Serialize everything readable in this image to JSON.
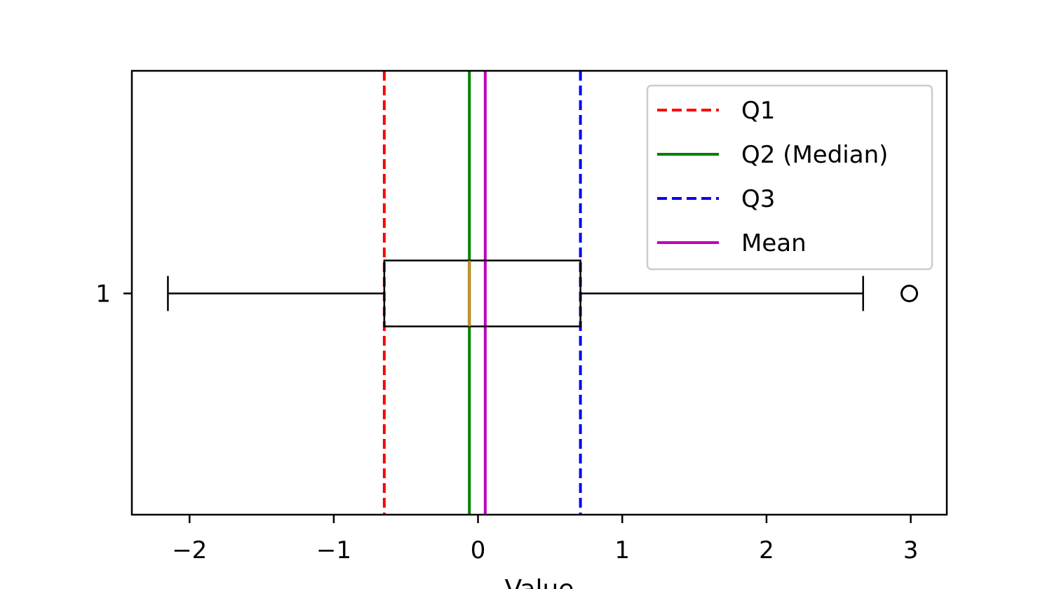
{
  "chart_data": {
    "type": "boxplot",
    "orientation": "horizontal",
    "title": "",
    "xlabel": "Value",
    "ylabel": "",
    "xlim": [
      -2.4,
      3.25
    ],
    "x_ticks": [
      -2,
      -1,
      0,
      1,
      2,
      3
    ],
    "x_tick_labels": [
      "−2",
      "−1",
      "0",
      "1",
      "2",
      "3"
    ],
    "y_ticks": [
      1
    ],
    "y_tick_labels": [
      "1"
    ],
    "grid": false,
    "legend_position": "top-right",
    "box": {
      "category": "1",
      "whisker_low": -2.15,
      "q1": -0.65,
      "median": -0.06,
      "q3": 0.71,
      "whisker_high": 2.67,
      "outliers": [
        2.99
      ],
      "box_color": "#000000",
      "median_color": "#ff7f0e"
    },
    "reference_lines": [
      {
        "name": "Q1",
        "value": -0.65,
        "color": "#ff0000",
        "style": "dashed"
      },
      {
        "name": "Q2 (Median)",
        "value": -0.06,
        "color": "#008000",
        "style": "solid"
      },
      {
        "name": "Q3",
        "value": 0.71,
        "color": "#0000ff",
        "style": "dashed"
      },
      {
        "name": "Mean",
        "value": 0.05,
        "color": "#bf00bf",
        "style": "solid"
      }
    ]
  }
}
